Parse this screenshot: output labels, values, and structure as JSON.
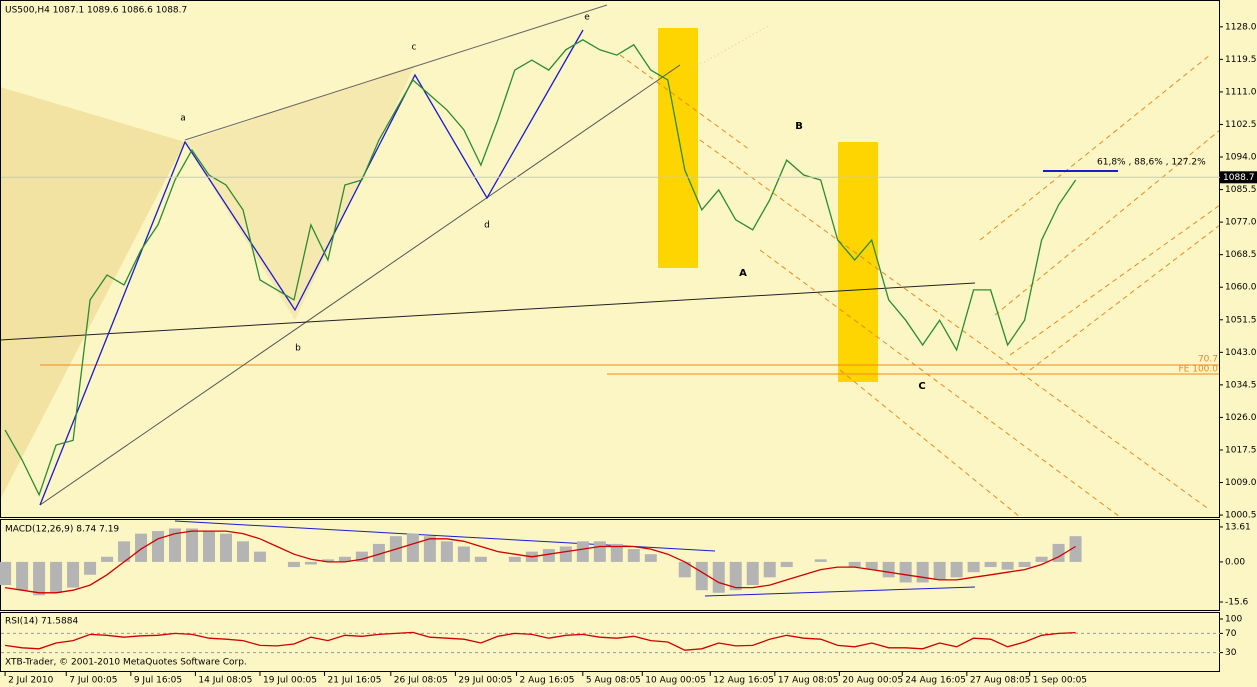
{
  "chart_data": [
    {
      "type": "line",
      "title": "US500,H4 1087.1 1089.6 1086.6 1088.7",
      "footer": "XTB-Trader, © 2001-2010 MetaQuotes Software Corp.",
      "annotations": [
        "a",
        "b",
        "c",
        "d",
        "e",
        "A",
        "B",
        "C",
        "61,8% , 88,6% , 127.2%",
        "70.7",
        "FE 100.0"
      ],
      "series": [
        {
          "name": "US500",
          "color": "#2e8b2e",
          "values": [
            1022.7,
            1014.9,
            1005.8,
            1018.8,
            1020,
            1056.7,
            1063.2,
            1060.6,
            1069.7,
            1076.3,
            1088,
            1095.8,
            1089.3,
            1086.7,
            1080.2,
            1061.9,
            1059.3,
            1056.7,
            1076.3,
            1067.1,
            1086.7,
            1088,
            1098.4,
            1106.3,
            1114.1,
            1110.2,
            1106.3,
            1101.1,
            1091.9,
            1103.7,
            1116.7,
            1119.3,
            1116.7,
            1122,
            1124.6,
            1122,
            1120.6,
            1123.3,
            1116.7,
            1114.1,
            1090.6,
            1080.2,
            1085.4,
            1077.6,
            1075,
            1082.8,
            1093.2,
            1089.3,
            1088,
            1072.3,
            1067.1,
            1072.3,
            1056.7,
            1051.4,
            1044.9,
            1051.4,
            1043.6,
            1059.3,
            1059.3,
            1044.9,
            1051.4,
            1072.3,
            1081.5,
            1088
          ]
        }
      ],
      "last_value": 1088.7,
      "xlim": [
        -0.3,
        71.5
      ],
      "ylim": [
        1000,
        1135
      ],
      "yticks": [
        {
          "value": 1128,
          "label": "1128.0"
        },
        {
          "value": 1119.5,
          "label": "1119.5"
        },
        {
          "value": 1111,
          "label": "1111.0"
        },
        {
          "value": 1102.5,
          "label": "1102.5"
        },
        {
          "value": 1094,
          "label": "1094.0"
        },
        {
          "value": 1085.5,
          "label": "1085.5"
        },
        {
          "value": 1077,
          "label": "1077.0"
        },
        {
          "value": 1068.5,
          "label": "1068.5"
        },
        {
          "value": 1060,
          "label": "1060.0"
        },
        {
          "value": 1051.5,
          "label": "1051.5"
        },
        {
          "value": 1043,
          "label": "1043.0"
        },
        {
          "value": 1034.5,
          "label": "1034.5"
        },
        {
          "value": 1026,
          "label": "1026.0"
        },
        {
          "value": 1017.5,
          "label": "1017.5"
        },
        {
          "value": 1009,
          "label": "1009.0"
        },
        {
          "value": 1000.5,
          "label": "1000.5"
        }
      ],
      "xticks": [
        {
          "value": 0,
          "label": "2 Jul 2010"
        },
        {
          "value": 3.6,
          "label": "7 Jul 00:05"
        },
        {
          "value": 7.4,
          "label": "9 Jul 16:05"
        },
        {
          "value": 11.2,
          "label": "14 Jul 08:05"
        },
        {
          "value": 15,
          "label": "19 Jul 00:05"
        },
        {
          "value": 18.8,
          "label": "21 Jul 16:05"
        },
        {
          "value": 22.7,
          "label": "26 Jul 08:05"
        },
        {
          "value": 26.5,
          "label": "29 Jul 00:05"
        },
        {
          "value": 30.1,
          "label": "2 Aug 16:05"
        },
        {
          "value": 34,
          "label": "5 Aug 08:05"
        },
        {
          "value": 37.5,
          "label": "10 Aug 00:05"
        },
        {
          "value": 41.5,
          "label": "12 Aug 16:05"
        },
        {
          "value": 45.3,
          "label": "17 Aug 08:05"
        },
        {
          "value": 49.1,
          "label": "20 Aug 00:05"
        },
        {
          "value": 52.8,
          "label": "24 Aug 16:05"
        },
        {
          "value": 56.6,
          "label": "27 Aug 08:05"
        },
        {
          "value": 60.3,
          "label": "1 Sep 00:05"
        }
      ]
    },
    {
      "type": "bar",
      "title": "MACD(12,26,9) 8.74 7.19",
      "series": [
        {
          "name": "MACD",
          "type": "bar",
          "color": "#b4b4b4",
          "values": [
            -9,
            -11,
            -13,
            -12,
            -10,
            -5,
            2,
            8,
            11,
            12,
            13,
            13,
            12,
            11,
            8,
            4,
            0,
            -2,
            -1,
            1,
            2,
            4,
            7,
            10,
            11,
            10,
            8,
            6,
            2,
            0,
            2,
            4,
            5,
            6,
            8,
            8,
            7,
            5,
            3,
            0,
            -6,
            -11,
            -12,
            -11,
            -9,
            -6,
            -2,
            0,
            1,
            0,
            -2,
            -3,
            -6,
            -8,
            -8,
            -7,
            -6,
            -4,
            -2,
            -3,
            -2,
            2,
            7,
            10
          ]
        },
        {
          "name": "Signal",
          "type": "line",
          "color": "#d00000",
          "values": [
            -10,
            -11,
            -12,
            -12,
            -11,
            -9,
            -5,
            0,
            5,
            9,
            11,
            12,
            12,
            12,
            11,
            9,
            6,
            3,
            1,
            0,
            0,
            1,
            3,
            5,
            7,
            9,
            9,
            8,
            6,
            4,
            3,
            2,
            3,
            4,
            5,
            6,
            6,
            6,
            5,
            3,
            0,
            -4,
            -8,
            -10,
            -10,
            -9,
            -7,
            -5,
            -3,
            -2,
            -2,
            -3,
            -4,
            -5,
            -6,
            -7,
            -7,
            -6,
            -5,
            -4,
            -3,
            -1,
            2,
            6
          ]
        }
      ],
      "ylim": [
        -18.7,
        16.3
      ],
      "yticks": [
        13.61,
        {
          "value": 0,
          "label": "0.00"
        },
        -15.6
      ]
    },
    {
      "type": "line",
      "title": "RSI(14) 71.5884",
      "series": [
        {
          "name": "RSI",
          "color": "#d00000",
          "values": [
            45,
            40,
            38,
            50,
            55,
            68,
            66,
            62,
            65,
            66,
            70,
            68,
            60,
            58,
            55,
            45,
            44,
            48,
            62,
            55,
            66,
            64,
            68,
            70,
            72,
            62,
            60,
            58,
            50,
            64,
            70,
            68,
            60,
            66,
            68,
            62,
            60,
            64,
            55,
            52,
            35,
            38,
            50,
            44,
            45,
            58,
            66,
            60,
            58,
            45,
            42,
            50,
            40,
            40,
            38,
            50,
            42,
            60,
            58,
            42,
            52,
            66,
            70,
            71.6
          ]
        }
      ],
      "levels_color": "#999999",
      "ylim": [
        0,
        100
      ],
      "yticks": [
        100,
        70,
        30
      ]
    }
  ]
}
